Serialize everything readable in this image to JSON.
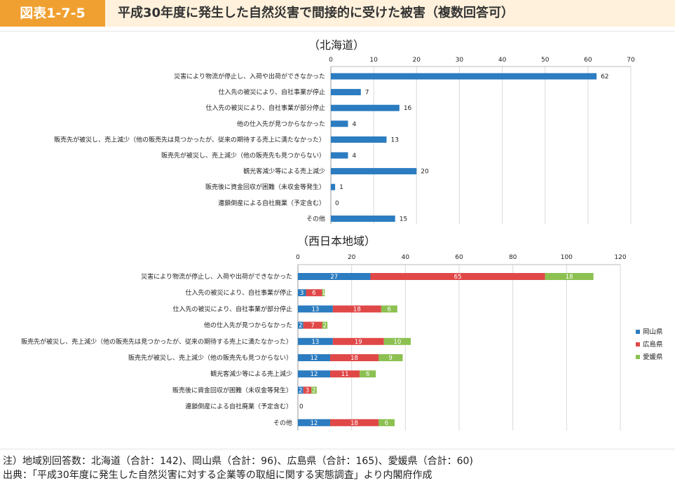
{
  "header": {
    "badge": "図表1-7-5",
    "title": "平成30年度に発生した自然災害で間接的に受けた被害（複数回答可）"
  },
  "notes": {
    "line1": "注）地域別回答数：北海道（合計：142)、岡山県（合計：96)、広島県（合計：165)、愛媛県（合計：60)",
    "line2": "出典：「平成30年度に発生した自然災害に対する企業等の取組に関する実態調査」より内閣府作成"
  },
  "chart_data": [
    {
      "type": "bar",
      "orientation": "horizontal",
      "title": "（北海道）",
      "categories": [
        "災害により物流が停止し、入荷や出荷ができなかった",
        "仕入先の被災により、自社事業が停止",
        "仕入先の被災により、自社事業が部分停止",
        "他の仕入先が見つからなかった",
        "販売先が被災し、売上減少（他の販売先は見つかったが、従来の期待する売上に満たなかった）",
        "販売先が被災し、売上減少（他の販売先も見つからない）",
        "観光客減少等による売上減少",
        "販売後に資金回収が困難（未収金等発生）",
        "連鎖倒産による自社廃業（予定含む）",
        "その他"
      ],
      "values": [
        62,
        7,
        16,
        4,
        13,
        4,
        20,
        1,
        0,
        15
      ],
      "xlim": [
        0,
        70
      ],
      "ticks": [
        0,
        10,
        20,
        30,
        40,
        50,
        60,
        70
      ],
      "color": "#2b7cc0"
    },
    {
      "type": "bar",
      "orientation": "horizontal",
      "stacked": true,
      "title": "（西日本地域）",
      "categories": [
        "災害により物流が停止し、入荷や出荷ができなかった",
        "仕入先の被災により、自社事業が停止",
        "仕入先の被災により、自社事業が部分停止",
        "他の仕入先が見つからなかった",
        "販売先が被災し、売上減少（他の販売先は見つかったが、従来の期待する売上に満たなかった）",
        "販売先が被災し、売上減少（他の販売先も見つからない）",
        "観光客減少等による売上減少",
        "販売後に資金回収が困難（未収金等発生）",
        "連鎖倒産による自社廃業（予定含む）",
        "その他"
      ],
      "series": [
        {
          "name": "岡山県",
          "color": "#2b7cc0",
          "values": [
            27,
            3,
            13,
            2,
            13,
            12,
            12,
            2,
            0,
            12
          ]
        },
        {
          "name": "広島県",
          "color": "#e04848",
          "values": [
            65,
            6,
            18,
            7,
            19,
            18,
            11,
            3,
            0,
            18
          ]
        },
        {
          "name": "愛媛県",
          "color": "#8cc050",
          "values": [
            18,
            1,
            6,
            2,
            10,
            9,
            6,
            2,
            0,
            6
          ]
        }
      ],
      "xlim": [
        0,
        120
      ],
      "ticks": [
        0,
        20,
        40,
        60,
        80,
        100,
        120
      ],
      "legend_position": "right"
    }
  ]
}
